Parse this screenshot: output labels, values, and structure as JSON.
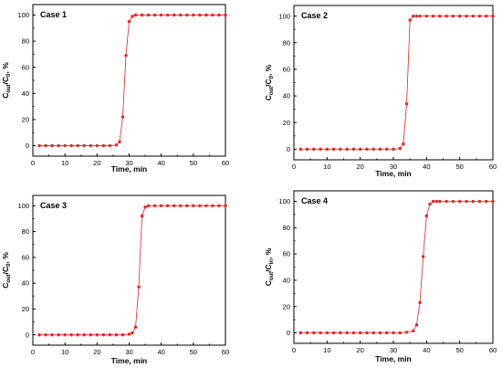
{
  "colors": {
    "series": "#ee2222",
    "axis": "#000000",
    "background": "#ffffff"
  },
  "chart_data": [
    {
      "type": "line",
      "annotation": "Case 1",
      "xlabel": "Time, min",
      "ylabel": {
        "main": "C",
        "sub1": "out",
        "mid": "/C",
        "sub2": "0",
        "tail": ", %"
      },
      "xlim": [
        0,
        60
      ],
      "ylim": [
        -8,
        108
      ],
      "xticks": [
        0,
        10,
        20,
        30,
        40,
        50,
        60
      ],
      "yticks": [
        0,
        20,
        40,
        60,
        80,
        100
      ],
      "grid": false,
      "x": [
        2,
        4,
        6,
        8,
        10,
        12,
        14,
        16,
        18,
        20,
        22,
        24,
        26,
        27,
        28,
        29,
        30,
        31,
        32,
        34,
        36,
        38,
        40,
        42,
        44,
        46,
        48,
        50,
        52,
        54,
        56,
        58,
        60
      ],
      "y": [
        0,
        0,
        0,
        0,
        0,
        0,
        0,
        0,
        0,
        0,
        0,
        0,
        0.5,
        3,
        22,
        69,
        95,
        99,
        100,
        100,
        100,
        100,
        100,
        100,
        100,
        100,
        100,
        100,
        100,
        100,
        100,
        100,
        100
      ]
    },
    {
      "type": "line",
      "annotation": "Case 2",
      "xlabel": "Time, min",
      "ylabel": {
        "main": "C",
        "sub1": "out",
        "mid": "/C",
        "sub2": "0",
        "tail": ", %"
      },
      "xlim": [
        0,
        60
      ],
      "ylim": [
        -8,
        108
      ],
      "xticks": [
        0,
        10,
        20,
        30,
        40,
        50,
        60
      ],
      "yticks": [
        0,
        20,
        40,
        60,
        80,
        100
      ],
      "grid": false,
      "x": [
        2,
        4,
        6,
        8,
        10,
        12,
        14,
        16,
        18,
        20,
        22,
        24,
        26,
        28,
        30,
        32,
        33,
        34,
        35,
        36,
        37,
        38,
        40,
        42,
        44,
        46,
        48,
        50,
        52,
        54,
        56,
        58,
        60
      ],
      "y": [
        0,
        0,
        0,
        0,
        0,
        0,
        0,
        0,
        0,
        0,
        0,
        0,
        0,
        0,
        0,
        0.5,
        4,
        34,
        97,
        100,
        100,
        100,
        100,
        100,
        100,
        100,
        100,
        100,
        100,
        100,
        100,
        100,
        100
      ]
    },
    {
      "type": "line",
      "annotation": "Case 3",
      "xlabel": "Time, min",
      "ylabel": {
        "main": "C",
        "sub1": "out",
        "mid": "/C",
        "sub2": "0",
        "tail": ", %"
      },
      "xlim": [
        0,
        60
      ],
      "ylim": [
        -8,
        108
      ],
      "xticks": [
        0,
        10,
        20,
        30,
        40,
        50,
        60
      ],
      "yticks": [
        0,
        20,
        40,
        60,
        80,
        100
      ],
      "grid": false,
      "x": [
        2,
        4,
        6,
        8,
        10,
        12,
        14,
        16,
        18,
        20,
        22,
        24,
        26,
        28,
        30,
        31,
        32,
        33,
        34,
        35,
        36,
        38,
        40,
        42,
        44,
        46,
        48,
        50,
        52,
        54,
        56,
        58,
        60
      ],
      "y": [
        0,
        0,
        0,
        0,
        0,
        0,
        0,
        0,
        0,
        0,
        0,
        0,
        0,
        0,
        0.5,
        1.5,
        6,
        37,
        92,
        99,
        100,
        100,
        100,
        100,
        100,
        100,
        100,
        100,
        100,
        100,
        100,
        100,
        100
      ]
    },
    {
      "type": "line",
      "annotation": "Case 4",
      "xlabel": "Time, min",
      "ylabel": {
        "main": "C",
        "sub1": "out",
        "mid": "/C",
        "sub2": "in",
        "tail": ", %"
      },
      "xlim": [
        0,
        60
      ],
      "ylim": [
        -8,
        108
      ],
      "xticks": [
        0,
        10,
        20,
        30,
        40,
        50,
        60
      ],
      "yticks": [
        0,
        20,
        40,
        60,
        80,
        100
      ],
      "grid": false,
      "x": [
        2,
        4,
        6,
        8,
        10,
        12,
        14,
        16,
        18,
        20,
        22,
        24,
        26,
        28,
        30,
        32,
        34,
        36,
        37,
        38,
        39,
        40,
        41,
        42,
        43,
        44,
        46,
        48,
        50,
        52,
        54,
        56,
        58,
        60
      ],
      "y": [
        0,
        0,
        0,
        0,
        0,
        0,
        0,
        0,
        0,
        0,
        0,
        0,
        0,
        0,
        0,
        0,
        0.5,
        1.5,
        6,
        23,
        58,
        89,
        98,
        100,
        100,
        100,
        100,
        100,
        100,
        100,
        100,
        100,
        100,
        100
      ]
    }
  ]
}
